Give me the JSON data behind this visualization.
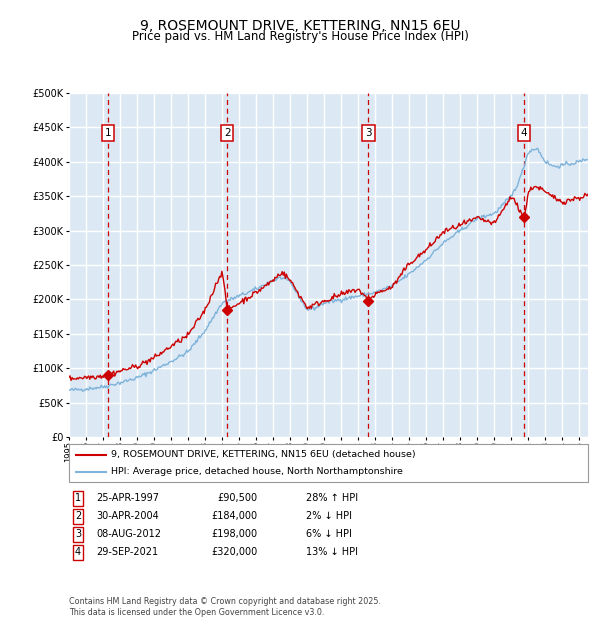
{
  "title": "9, ROSEMOUNT DRIVE, KETTERING, NN15 6EU",
  "subtitle": "Price paid vs. HM Land Registry's House Price Index (HPI)",
  "legend_line1": "9, ROSEMOUNT DRIVE, KETTERING, NN15 6EU (detached house)",
  "legend_line2": "HPI: Average price, detached house, North Northamptonshire",
  "footer": "Contains HM Land Registry data © Crown copyright and database right 2025.\nThis data is licensed under the Open Government Licence v3.0.",
  "sale_markers": [
    {
      "num": 1,
      "date_label": "25-APR-1997",
      "price": 90500,
      "rel": "28% ↑ HPI",
      "year": 1997.3
    },
    {
      "num": 2,
      "date_label": "30-APR-2004",
      "price": 184000,
      "rel": "2% ↓ HPI",
      "year": 2004.3
    },
    {
      "num": 3,
      "date_label": "08-AUG-2012",
      "price": 198000,
      "rel": "6% ↓ HPI",
      "year": 2012.6
    },
    {
      "num": 4,
      "date_label": "29-SEP-2021",
      "price": 320000,
      "rel": "13% ↓ HPI",
      "year": 2021.75
    }
  ],
  "xlim": [
    1995.0,
    2025.5
  ],
  "ylim": [
    0,
    500000
  ],
  "yticks": [
    0,
    50000,
    100000,
    150000,
    200000,
    250000,
    300000,
    350000,
    400000,
    450000,
    500000
  ],
  "bg_color": "#dce9f5",
  "grid_color": "#ffffff",
  "red_line_color": "#cc0000",
  "blue_line_color": "#7fb3d9",
  "dashed_color": "#cc0000",
  "marker_box_color": "#cc0000",
  "title_fontsize": 10,
  "subtitle_fontsize": 8.5
}
